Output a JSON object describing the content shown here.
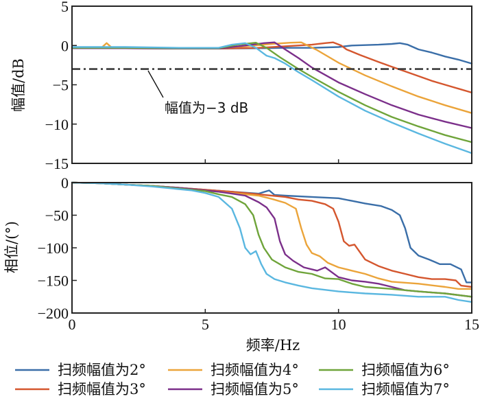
{
  "chart_data": [
    {
      "type": "line",
      "panel": "magnitude",
      "title": "",
      "xlabel": "",
      "ylabel": "幅值/dB",
      "xlim": [
        0,
        15
      ],
      "ylim": [
        -15,
        5
      ],
      "xticks": [
        0,
        5,
        10,
        15
      ],
      "yticks": [
        5,
        0,
        -5,
        -10,
        -15
      ],
      "ytick_labels": [
        "5",
        "0",
        "−5",
        "−10",
        "−15"
      ],
      "grid": false,
      "reference_line": {
        "y": -3,
        "style": "dash-dot",
        "color": "#3a3a3a"
      },
      "annotation": {
        "text": "幅值为−3 dB",
        "points_to": {
          "x": 3.4,
          "y": -3
        }
      },
      "series": [
        {
          "name": "扫频幅值为2°",
          "color": "#3a6ea8",
          "x": [
            0,
            2,
            4,
            5.5,
            7,
            8,
            9,
            10,
            10.5,
            11,
            11.5,
            12,
            12.3,
            12.6,
            13,
            13.5,
            14,
            14.5,
            15
          ],
          "y": [
            -0.3,
            -0.3,
            -0.35,
            -0.4,
            -0.35,
            -0.3,
            -0.3,
            -0.2,
            0,
            0.05,
            0.1,
            0.2,
            0.3,
            0.1,
            -0.5,
            -0.9,
            -1.4,
            -1.8,
            -2.3
          ]
        },
        {
          "name": "扫频幅值为3°",
          "color": "#d4562e",
          "x": [
            0,
            2,
            4,
            5.5,
            7,
            8,
            9,
            9.5,
            9.8,
            10.1,
            10.3,
            10.8,
            11.5,
            12,
            12.5,
            13,
            13.5,
            14,
            14.5,
            15
          ],
          "y": [
            -0.35,
            -0.35,
            -0.4,
            -0.4,
            -0.3,
            -0.1,
            0.1,
            0.3,
            0.4,
            0,
            -0.5,
            -1.2,
            -2.1,
            -2.7,
            -3.3,
            -3.9,
            -4.5,
            -5.0,
            -5.5,
            -6.0
          ]
        },
        {
          "name": "扫频幅值为4°",
          "color": "#eba43a",
          "x": [
            0,
            1.1,
            1.3,
            1.5,
            2,
            4,
            5.5,
            6.5,
            7.5,
            8.2,
            8.6,
            9.2,
            10,
            11,
            12,
            13,
            14,
            15
          ],
          "y": [
            -0.3,
            -0.3,
            0.3,
            -0.3,
            -0.3,
            -0.35,
            -0.35,
            -0.1,
            0.2,
            0.35,
            0.4,
            -0.6,
            -2.2,
            -3.8,
            -5.2,
            -6.5,
            -7.6,
            -8.6
          ]
        },
        {
          "name": "扫频幅值为5°",
          "color": "#7b2f8a",
          "x": [
            0,
            2,
            4,
            5.5,
            6.5,
            7.2,
            7.6,
            8,
            8.5,
            9,
            10,
            11,
            12,
            13,
            14,
            15
          ],
          "y": [
            -0.35,
            -0.35,
            -0.4,
            -0.4,
            0,
            0.3,
            0.4,
            -0.5,
            -1.6,
            -2.8,
            -4.7,
            -6.2,
            -7.6,
            -8.8,
            -9.7,
            -10.5
          ]
        },
        {
          "name": "扫频幅值为6°",
          "color": "#6fa43a",
          "x": [
            0,
            2,
            4,
            5.5,
            6.2,
            6.9,
            7.3,
            7.8,
            8.5,
            9,
            10,
            11,
            12,
            13,
            14,
            15
          ],
          "y": [
            -0.3,
            -0.3,
            -0.35,
            -0.35,
            0.1,
            0.35,
            -0.3,
            -1.5,
            -3,
            -4,
            -5.9,
            -7.6,
            -9.1,
            -10.3,
            -11.4,
            -12.3
          ]
        },
        {
          "name": "扫频幅值为7°",
          "color": "#5ab7e0",
          "x": [
            0,
            2,
            4,
            5.5,
            6.0,
            6.5,
            6.9,
            7.3,
            7.6,
            8,
            8.5,
            9,
            10,
            11,
            12,
            13,
            14,
            15
          ],
          "y": [
            -0.2,
            -0.2,
            -0.3,
            -0.3,
            0.1,
            0.3,
            -0.3,
            -1.3,
            -1.6,
            -2.3,
            -3.4,
            -4.4,
            -6.5,
            -8.3,
            -9.8,
            -11.2,
            -12.5,
            -13.7
          ]
        }
      ]
    },
    {
      "type": "line",
      "panel": "phase",
      "title": "",
      "xlabel": "频率/Hz",
      "ylabel": "相位/(°)",
      "xlim": [
        0,
        15
      ],
      "ylim": [
        -200,
        0
      ],
      "xticks": [
        0,
        5,
        10,
        15
      ],
      "xtick_labels": [
        "0",
        "5",
        "10",
        "15"
      ],
      "yticks": [
        0,
        -50,
        -100,
        -150,
        -200
      ],
      "ytick_labels": [
        "0",
        "−50",
        "−100",
        "−150",
        "−200"
      ],
      "grid": false,
      "series": [
        {
          "name": "扫频幅值为2°",
          "color": "#3a6ea8",
          "x": [
            0,
            1,
            2,
            3,
            4,
            5,
            6,
            7,
            7.4,
            7.6,
            8,
            9,
            10,
            10.5,
            11,
            11.6,
            12,
            12.3,
            12.5,
            12.7,
            13,
            13.4,
            13.8,
            14.2,
            14.6,
            14.8,
            15
          ],
          "y": [
            0,
            -1,
            -3,
            -5,
            -8,
            -11,
            -14,
            -17,
            -12,
            -19,
            -20,
            -22,
            -24,
            -28,
            -32,
            -36,
            -42,
            -50,
            -70,
            -100,
            -112,
            -118,
            -125,
            -125,
            -133,
            -153,
            -153
          ]
        },
        {
          "name": "扫频幅值为3°",
          "color": "#d4562e",
          "x": [
            0,
            1,
            2,
            3,
            4,
            5,
            6,
            7,
            7.5,
            8,
            8.5,
            9,
            9.5,
            9.8,
            10,
            10.2,
            10.4,
            10.6,
            11,
            11.5,
            12,
            12.5,
            13,
            13.5,
            14,
            14.4,
            14.6,
            15
          ],
          "y": [
            0,
            -1,
            -3,
            -5,
            -8,
            -11,
            -14,
            -18,
            -20,
            -22,
            -26,
            -28,
            -33,
            -40,
            -60,
            -90,
            -97,
            -95,
            -118,
            -128,
            -135,
            -140,
            -145,
            -148,
            -148,
            -150,
            -158,
            -160
          ]
        },
        {
          "name": "扫频幅值为4°",
          "color": "#eba43a",
          "x": [
            0,
            1,
            2,
            3,
            4,
            5,
            6,
            7,
            7.5,
            8,
            8.4,
            8.6,
            8.8,
            9,
            9.3,
            9.6,
            10,
            10.5,
            11,
            11.5,
            12,
            13,
            14,
            14.5,
            15
          ],
          "y": [
            0,
            -1,
            -3,
            -5,
            -8,
            -12,
            -16,
            -20,
            -25,
            -31,
            -40,
            -70,
            -95,
            -108,
            -113,
            -123,
            -130,
            -135,
            -140,
            -147,
            -152,
            -155,
            -160,
            -163,
            -163
          ]
        },
        {
          "name": "扫频幅值为5°",
          "color": "#7b2f8a",
          "x": [
            0,
            1,
            2,
            3,
            4,
            5,
            5.5,
            6,
            6.5,
            7,
            7.3,
            7.6,
            7.8,
            8,
            8.3,
            8.7,
            9.2,
            9.5,
            10,
            10.5,
            11,
            11.5,
            12,
            12.5,
            13,
            14,
            15
          ],
          "y": [
            0,
            -1,
            -3,
            -5,
            -8,
            -12,
            -14,
            -17,
            -20,
            -30,
            -38,
            -55,
            -90,
            -110,
            -120,
            -130,
            -135,
            -130,
            -145,
            -150,
            -152,
            -155,
            -160,
            -165,
            -167,
            -170,
            -175
          ]
        },
        {
          "name": "扫频幅值为6°",
          "color": "#6fa43a",
          "x": [
            0,
            1,
            2,
            3,
            4,
            5,
            5.5,
            6,
            6.5,
            6.8,
            7,
            7.2,
            7.5,
            8,
            8.5,
            9,
            9.5,
            10,
            10.5,
            11,
            12,
            13,
            14,
            15
          ],
          "y": [
            0,
            -1,
            -3,
            -5,
            -9,
            -13,
            -18,
            -22,
            -33,
            -50,
            -80,
            -100,
            -118,
            -130,
            -137,
            -140,
            -147,
            -148,
            -155,
            -160,
            -163,
            -167,
            -170,
            -175
          ]
        },
        {
          "name": "扫频幅值为7°",
          "color": "#5ab7e0",
          "x": [
            0,
            1,
            2,
            3,
            4,
            4.5,
            5,
            5.5,
            6,
            6.3,
            6.5,
            6.7,
            6.9,
            7.1,
            7.3,
            7.6,
            8,
            8.5,
            9,
            10,
            11,
            12,
            13,
            14,
            14.5,
            15
          ],
          "y": [
            0,
            -1,
            -3,
            -6,
            -10,
            -12,
            -16,
            -22,
            -40,
            -70,
            -100,
            -110,
            -105,
            -125,
            -140,
            -148,
            -153,
            -158,
            -162,
            -167,
            -170,
            -172,
            -175,
            -175,
            -180,
            -183
          ]
        }
      ]
    }
  ],
  "legend": {
    "placement": "bottom",
    "columns": 3,
    "items": [
      {
        "label": "扫频幅值为2°",
        "color": "#3a6ea8"
      },
      {
        "label": "扫频幅值为4°",
        "color": "#eba43a"
      },
      {
        "label": "扫频幅值为6°",
        "color": "#6fa43a"
      },
      {
        "label": "扫频幅值为3°",
        "color": "#d4562e"
      },
      {
        "label": "扫频幅值为5°",
        "color": "#7b2f8a"
      },
      {
        "label": "扫频幅值为7°",
        "color": "#5ab7e0"
      }
    ]
  }
}
